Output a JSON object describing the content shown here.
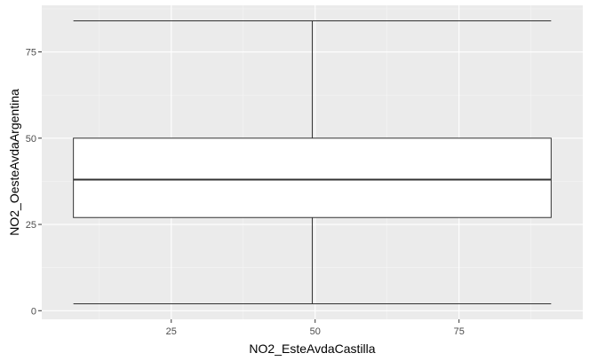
{
  "chart_data": {
    "type": "boxplot",
    "title": "",
    "xlabel": "NO2_EsteAvdaCastilla",
    "ylabel": "NO2_OesteAvdaArgentina",
    "xlim": [
      2.5,
      96.5
    ],
    "ylim": [
      -2.5,
      88.5
    ],
    "x_ticks": [
      25,
      50,
      75
    ],
    "x_tick_labels": [
      "25",
      "50",
      "75"
    ],
    "y_ticks": [
      0,
      25,
      50,
      75
    ],
    "y_tick_labels": [
      "0",
      "25",
      "50",
      "75"
    ],
    "grid": true,
    "legend": "none",
    "box": {
      "x_min": 8,
      "x_max": 91,
      "x_center": 49.5,
      "whisker_low": 2,
      "q1": 27,
      "median": 38,
      "q3": 50,
      "whisker_high": 84
    },
    "colors": {
      "panel_bg": "#ebebeb",
      "grid_major": "#ffffff",
      "grid_minor": "#f5f5f5",
      "box_fill": "#ffffff",
      "box_line": "#333333"
    }
  }
}
